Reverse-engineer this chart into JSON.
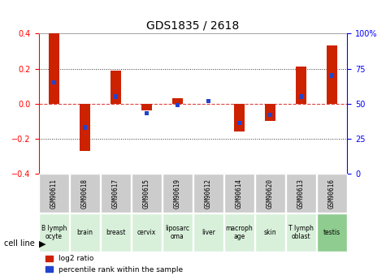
{
  "title": "GDS1835 / 2618",
  "samples": [
    "GSM90611",
    "GSM90618",
    "GSM90617",
    "GSM90615",
    "GSM90619",
    "GSM90612",
    "GSM90614",
    "GSM90620",
    "GSM90613",
    "GSM90616"
  ],
  "cell_lines": [
    "B lymph\nocyte",
    "brain",
    "breast",
    "cervix",
    "liposarc\noma",
    "liver",
    "macroph\nage",
    "skin",
    "T lymph\noblast",
    "testis"
  ],
  "cell_colors": [
    "#c8e6c9",
    "#c8e6c9",
    "#c8e6c9",
    "#c8e6c9",
    "#c8e6c9",
    "#c8e6c9",
    "#c8e6c9",
    "#c8e6c9",
    "#c8e6c9",
    "#a5d6a7"
  ],
  "log2_ratio": [
    0.4,
    -0.27,
    0.19,
    -0.04,
    0.03,
    0.0,
    -0.16,
    -0.1,
    0.21,
    0.33
  ],
  "pct_rank": [
    65,
    33,
    55,
    43,
    49,
    52,
    36,
    42,
    55,
    70
  ],
  "ylim_left": [
    -0.4,
    0.4
  ],
  "ylim_right": [
    0,
    100
  ],
  "yticks_left": [
    -0.4,
    -0.2,
    0.0,
    0.2,
    0.4
  ],
  "yticks_right": [
    0,
    25,
    50,
    75,
    100
  ],
  "bar_color": "#cc2200",
  "dot_color": "#2244cc",
  "dashed_color": "#dd4444",
  "grid_color": "#333333",
  "bg_color": "#f5f5f5",
  "sample_bg": "#cccccc",
  "cell_line_label": "cell line",
  "legend_ratio": "log2 ratio",
  "legend_pct": "percentile rank within the sample"
}
